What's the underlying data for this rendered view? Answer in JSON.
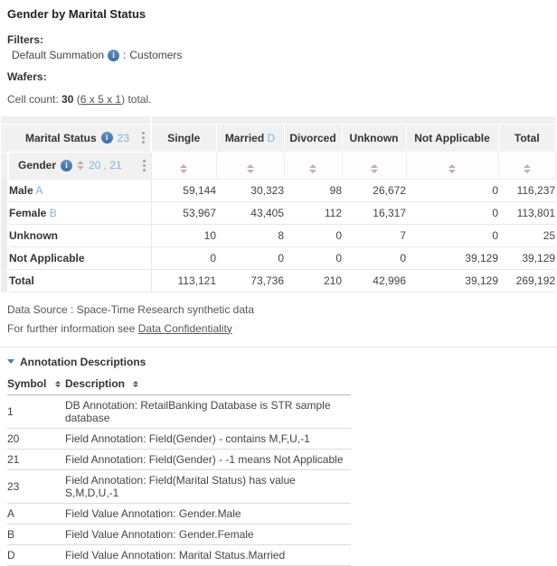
{
  "page": {
    "title": "Gender by Marital Status"
  },
  "filters": {
    "label": "Filters:",
    "name": "Default Summation",
    "separator": ":",
    "value": "Customers"
  },
  "wafers": {
    "label": "Wafers:"
  },
  "cell_count": {
    "prefix": "Cell count:",
    "count": "30",
    "open_paren": "(",
    "dimensions_link": "6 x 5 x 1",
    "close_paren": ")",
    "suffix": "total."
  },
  "main_table": {
    "column_field": {
      "label": "Marital Status",
      "annotation": "23"
    },
    "row_field": {
      "label": "Gender",
      "annotations": "20 ,  21"
    },
    "columns": [
      {
        "label": "Single",
        "annotation": ""
      },
      {
        "label": "Married",
        "annotation": "D"
      },
      {
        "label": "Divorced",
        "annotation": ""
      },
      {
        "label": "Unknown",
        "annotation": ""
      },
      {
        "label": "Not Applicable",
        "annotation": ""
      },
      {
        "label": "Total",
        "annotation": ""
      }
    ],
    "rows": [
      {
        "label": "Male",
        "annotation": "A",
        "values": [
          "59,144",
          "30,323",
          "98",
          "26,672",
          "0",
          "116,237"
        ]
      },
      {
        "label": "Female",
        "annotation": "B",
        "values": [
          "53,967",
          "43,405",
          "112",
          "16,317",
          "0",
          "113,801"
        ]
      },
      {
        "label": "Unknown",
        "annotation": "",
        "values": [
          "10",
          "8",
          "0",
          "7",
          "0",
          "25"
        ]
      },
      {
        "label": "Not Applicable",
        "annotation": "",
        "values": [
          "0",
          "0",
          "0",
          "0",
          "39,129",
          "39,129"
        ]
      },
      {
        "label": "Total",
        "annotation": "",
        "values": [
          "113,121",
          "73,736",
          "210",
          "42,996",
          "39,129",
          "269,192"
        ]
      }
    ]
  },
  "footer": {
    "data_source": "Data Source : Space-Time Research synthetic data",
    "further_info_prefix": "For further information see",
    "confidentiality_link": "Data Confidentiality"
  },
  "annotations_section": {
    "title": "Annotation Descriptions",
    "columns": [
      "Symbol",
      "Description"
    ],
    "rows": [
      {
        "symbol": "1",
        "description": "DB Annotation: RetailBanking Database is STR sample database"
      },
      {
        "symbol": "20",
        "description": "Field Annotation: Field(Gender) - contains M,F,U,-1"
      },
      {
        "symbol": "21",
        "description": "Field Annotation: Field(Gender) - -1 means Not Applicable"
      },
      {
        "symbol": "23",
        "description": "Field Annotation: Field(Marital Status) has value S,M,D,U,-1"
      },
      {
        "symbol": "A",
        "description": "Field Value Annotation: Gender.Male"
      },
      {
        "symbol": "B",
        "description": "Field Value Annotation: Gender.Female"
      },
      {
        "symbol": "D",
        "description": "Field Value Annotation: Marital Status.Married"
      }
    ]
  },
  "colors": {
    "annotation_ref_blue": "#82b1e3",
    "info_icon_blue": "#3c6da0",
    "sort_arrow_rose": "#c9abab",
    "collapse_triangle_blue": "#4a7ec0",
    "header_bg": "#f1f1f1",
    "link_gray": "#555555"
  }
}
